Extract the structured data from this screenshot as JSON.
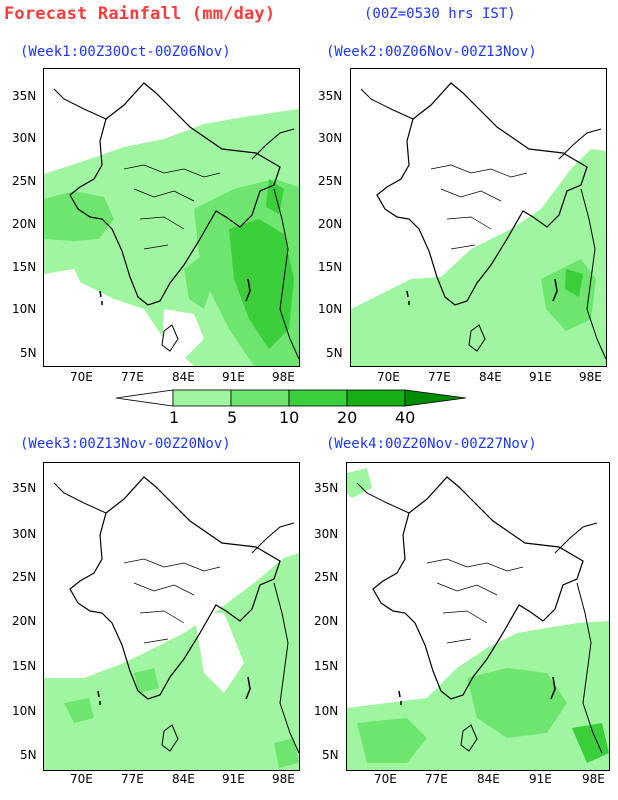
{
  "header": {
    "title": "Forecast Rainfall (mm/day)",
    "time_note": "(00Z=0530 hrs IST)"
  },
  "panels": [
    {
      "title": "(Week1:00Z30Oct-00Z06Nov)"
    },
    {
      "title": "(Week2:00Z06Nov-00Z13Nov)"
    },
    {
      "title": "(Week3:00Z13Nov-00Z20Nov)"
    },
    {
      "title": "(Week4:00Z20Nov-00Z27Nov)"
    }
  ],
  "axes": {
    "lat_labels": [
      "35N",
      "30N",
      "25N",
      "20N",
      "15N",
      "10N",
      "5N"
    ],
    "lon_labels": [
      "70E",
      "77E",
      "84E",
      "91E",
      "98E"
    ]
  },
  "legend": {
    "labels": [
      "1",
      "5",
      "10",
      "20",
      "40"
    ],
    "colors": [
      "#ffffff",
      "#a0f5a0",
      "#6ee56e",
      "#3ccf3c",
      "#16b016",
      "#008c00"
    ]
  },
  "colors": {
    "title": "#ff3b3b",
    "subtitle": "#1c35ff"
  }
}
